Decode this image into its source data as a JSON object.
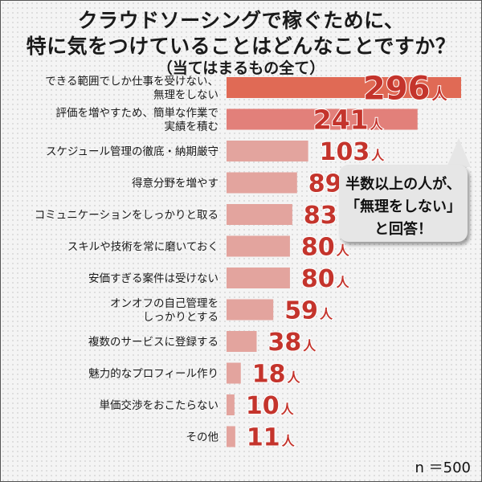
{
  "chart_data": {
    "type": "bar",
    "orientation": "horizontal",
    "title_lines": [
      "クラウドソーシングで稼ぐために、",
      "特に気をつけていることはどんなことですか？",
      "（当てはまるもの全て）"
    ],
    "categories": [
      "できる範囲でしか仕事を受けない、無理をしない",
      "評価を増やすため、簡単な作業で実績を積む",
      "スケジュール管理の徹底・納期厳守",
      "得意分野を増やす",
      "コミュニケーションをしっかりと取る",
      "スキルや技術を常に磨いておく",
      "安価すぎる案件は受けない",
      "オンオフの自己管理をしっかりとする",
      "複数のサービスに登録する",
      "魅力的なプロフィール作り",
      "単価交渉をおこたらない",
      "その他"
    ],
    "category_label_lines": [
      [
        "できる範囲でしか仕事を受けない、",
        "無理をしない"
      ],
      [
        "評価を増やすため、簡単な作業で",
        "実績を積む"
      ],
      [
        "スケジュール管理の徹底・納期厳守"
      ],
      [
        "得意分野を増やす"
      ],
      [
        "コミュニケーションをしっかりと取る"
      ],
      [
        "スキルや技術を常に磨いておく"
      ],
      [
        "安価すぎる案件は受けない"
      ],
      [
        "オンオフの自己管理を",
        "しっかりとする"
      ],
      [
        "複数のサービスに登録する"
      ],
      [
        "魅力的なプロフィール作り"
      ],
      [
        "単価交渉をおこたらない"
      ],
      [
        "その他"
      ]
    ],
    "values": [
      296,
      241,
      103,
      89,
      83,
      80,
      80,
      59,
      38,
      18,
      10,
      11
    ],
    "value_unit": "人",
    "xlim": [
      0,
      296
    ],
    "grid": false,
    "annotation_lines": [
      "半数以上の人が、",
      "「無理をしない」",
      "と回答！"
    ],
    "note": "n ＝500"
  },
  "colors": {
    "top_bar": "#e06a55",
    "second_bar": "#e2807a",
    "other_bars": "#e3a49e",
    "value_text": "#c4342c",
    "value_outline": "#ffffff"
  }
}
